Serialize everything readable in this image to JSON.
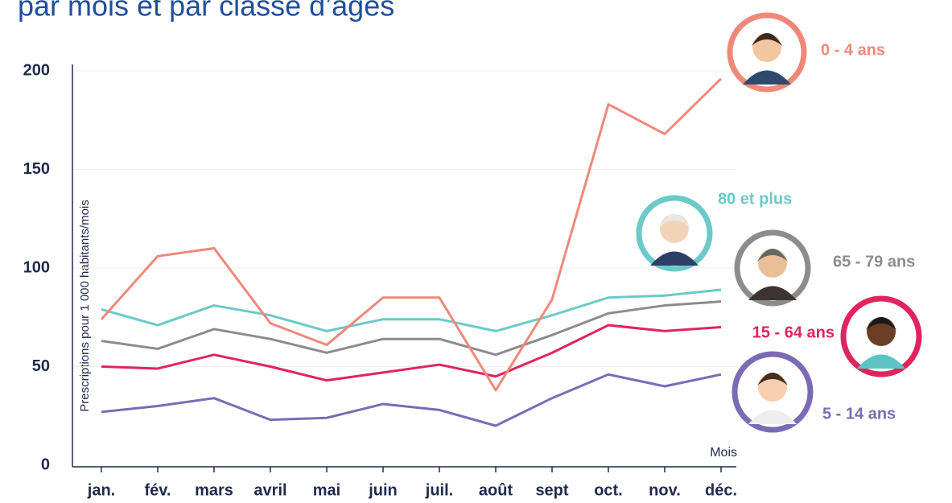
{
  "chart_data": {
    "type": "line",
    "title": "par mois et par classe d’âges",
    "y_label": "Prescriptions pour 1 000 habitants/mois",
    "x_label": "Mois",
    "categories": [
      "jan.",
      "fév.",
      "mars",
      "avril",
      "mai",
      "juin",
      "juil.",
      "août",
      "sept",
      "oct.",
      "nov.",
      "déc."
    ],
    "ylim": [
      0,
      200
    ],
    "yticks": [
      0,
      50,
      100,
      150,
      200
    ],
    "grid": true,
    "series": [
      {
        "name": "0 - 4 ans",
        "color": "#f0887a",
        "values": [
          74,
          106,
          110,
          72,
          61,
          85,
          85,
          38,
          84,
          183,
          168,
          196
        ]
      },
      {
        "name": "80 et plus",
        "color": "#6cc9c9",
        "values": [
          79,
          71,
          81,
          76,
          68,
          74,
          74,
          68,
          76,
          85,
          86,
          89
        ]
      },
      {
        "name": "65 - 79 ans",
        "color": "#8c8c8c",
        "values": [
          63,
          59,
          69,
          64,
          57,
          64,
          64,
          56,
          66,
          77,
          81,
          83
        ]
      },
      {
        "name": "15 - 64 ans",
        "color": "#e0245e",
        "values": [
          50,
          49,
          56,
          50,
          43,
          47,
          51,
          45,
          57,
          71,
          68,
          70
        ]
      },
      {
        "name": "5 - 14 ans",
        "color": "#7b6bb5",
        "values": [
          27,
          30,
          34,
          23,
          24,
          31,
          28,
          20,
          34,
          46,
          40,
          46
        ]
      }
    ]
  }
}
